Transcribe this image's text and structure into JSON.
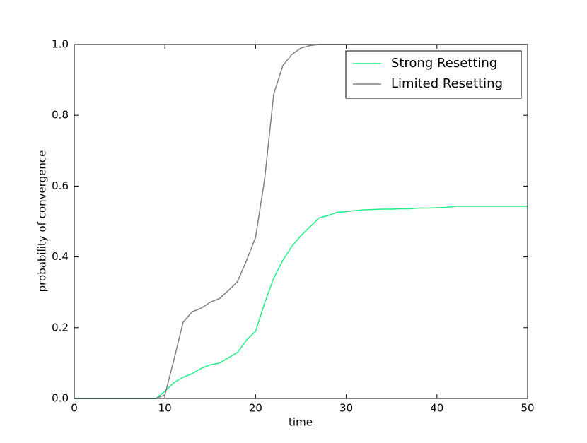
{
  "chart_data": {
    "type": "line",
    "x_label": "time",
    "y_label": "probability of convergence",
    "x": [
      0,
      1,
      2,
      3,
      4,
      5,
      6,
      7,
      8,
      9,
      10,
      11,
      12,
      13,
      14,
      15,
      16,
      17,
      18,
      19,
      20,
      21,
      22,
      23,
      24,
      25,
      26,
      27,
      28,
      29,
      30,
      31,
      32,
      33,
      34,
      35,
      36,
      37,
      38,
      39,
      40,
      41,
      42,
      43,
      44,
      45,
      46,
      47,
      48,
      49,
      50
    ],
    "series": [
      {
        "name": "Strong Resetting",
        "color": "#22ee88",
        "values": [
          0,
          0,
          0,
          0,
          0,
          0,
          0,
          0,
          0,
          0,
          0.02,
          0.045,
          0.06,
          0.07,
          0.085,
          0.095,
          0.1,
          0.115,
          0.13,
          0.165,
          0.19,
          0.27,
          0.34,
          0.39,
          0.43,
          0.46,
          0.485,
          0.51,
          0.517,
          0.526,
          0.528,
          0.531,
          0.533,
          0.534,
          0.535,
          0.535,
          0.536,
          0.536,
          0.538,
          0.538,
          0.539,
          0.54,
          0.543,
          0.543,
          0.543,
          0.543,
          0.543,
          0.543,
          0.543,
          0.543,
          0.543
        ]
      },
      {
        "name": "Limited Resetting",
        "color": "#808080",
        "values": [
          0,
          0,
          0,
          0,
          0,
          0,
          0,
          0,
          0,
          0,
          0.01,
          0.11,
          0.215,
          0.245,
          0.255,
          0.272,
          0.282,
          0.305,
          0.33,
          0.39,
          0.455,
          0.62,
          0.86,
          0.94,
          0.972,
          0.99,
          0.997,
          1,
          1,
          1,
          1,
          1,
          1,
          1,
          1,
          1,
          1,
          1,
          1,
          1,
          1,
          1,
          1,
          1,
          1,
          1,
          1,
          1,
          1,
          1,
          1
        ]
      }
    ],
    "xlim": [
      0,
      50
    ],
    "xticks": [
      0,
      10,
      20,
      30,
      40,
      50
    ],
    "ylim": [
      0,
      1
    ],
    "yticks": [
      {
        "value": 0,
        "label": "0.0"
      },
      {
        "value": 0.2,
        "label": "0.2"
      },
      {
        "value": 0.4,
        "label": "0.4"
      },
      {
        "value": 0.6,
        "label": "0.6"
      },
      {
        "value": 0.8,
        "label": "0.8"
      },
      {
        "value": 1,
        "label": "1.0"
      }
    ],
    "grid": false,
    "legend": "upper right"
  }
}
